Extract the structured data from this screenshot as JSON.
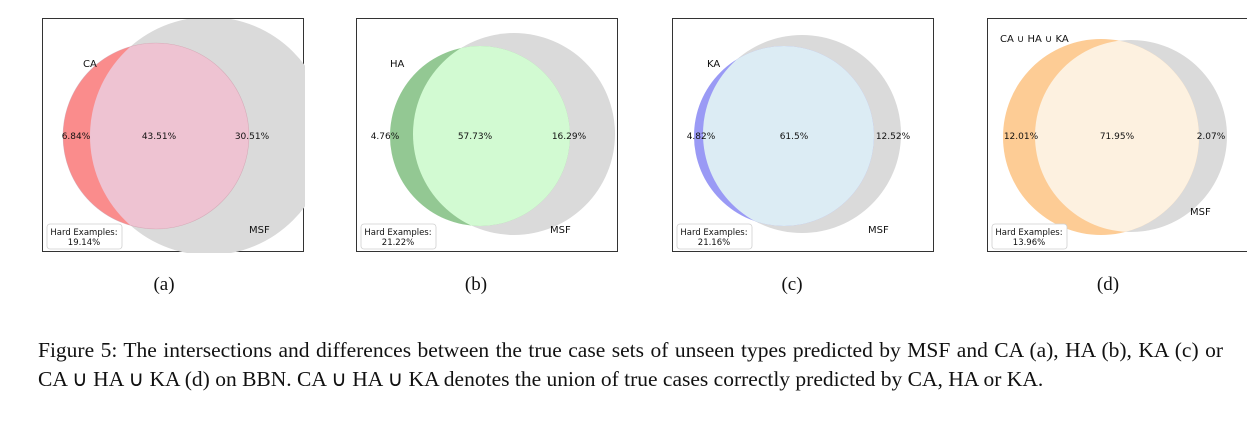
{
  "panels": [
    {
      "set_label": "CA",
      "other_label": "MSF",
      "left_only": "6.84%",
      "intersection": "43.51%",
      "right_only": "30.51%",
      "hard_label": "Hard Examples:",
      "hard_value": "19.14%",
      "sublabel": "(a)",
      "colors": {
        "left_only": "#fa8c8c",
        "overlap": "#eec3d2",
        "right": "#dadada"
      }
    },
    {
      "set_label": "HA",
      "other_label": "MSF",
      "left_only": "4.76%",
      "intersection": "57.73%",
      "right_only": "16.29%",
      "hard_label": "Hard Examples:",
      "hard_value": "21.22%",
      "sublabel": "(b)",
      "colors": {
        "left_only": "#93c893",
        "overlap": "#d2fad2",
        "right": "#dadada"
      }
    },
    {
      "set_label": "KA",
      "other_label": "MSF",
      "left_only": "4.82%",
      "intersection": "61.5%",
      "right_only": "12.52%",
      "hard_label": "Hard Examples:",
      "hard_value": "21.16%",
      "sublabel": "(c)",
      "colors": {
        "left_only": "#9a9af5",
        "overlap": "#dcecf4",
        "right": "#dadada"
      }
    },
    {
      "set_label": "CA ∪ HA ∪ KA",
      "other_label": "MSF",
      "left_only": "12.01%",
      "intersection": "71.95%",
      "right_only": "2.07%",
      "hard_label": "Hard Examples:",
      "hard_value": "13.96%",
      "sublabel": "(d)",
      "colors": {
        "left_only": "#fdcc95",
        "overlap": "#fdf1e0",
        "right": "#dadada"
      }
    }
  ],
  "caption": "Figure 5: The intersections and differences between the true case sets of unseen types predicted by MSF and CA (a), HA (b), KA (c) or CA ∪ HA ∪ KA (d) on BBN. CA ∪ HA ∪ KA denotes the union of true cases correctly predicted by CA, HA or KA."
}
